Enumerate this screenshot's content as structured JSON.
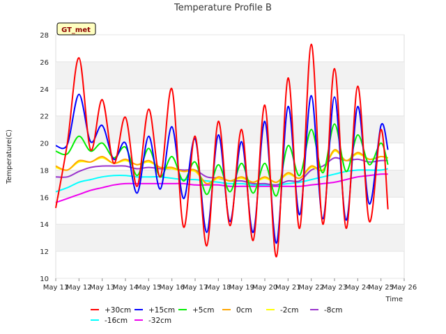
{
  "chart_data": {
    "type": "line",
    "title": "Temperature Profile B",
    "xlabel": "Time",
    "ylabel": "Temperature(C)",
    "badge": "GT_met",
    "x_ticks": [
      "May 11",
      "May 12",
      "May 13",
      "May 14",
      "May 15",
      "May 16",
      "May 17",
      "May 18",
      "May 19",
      "May 20",
      "May 21",
      "May 22",
      "May 23",
      "May 24",
      "May 25",
      "May 26"
    ],
    "y_ticks": [
      "10",
      "12",
      "14",
      "16",
      "18",
      "20",
      "22",
      "24",
      "26",
      "28"
    ],
    "xlim": [
      0,
      15
    ],
    "ylim": [
      10,
      28
    ],
    "bands": [
      [
        12,
        14
      ],
      [
        16,
        18
      ],
      [
        20,
        22
      ],
      [
        24,
        26
      ]
    ],
    "x": [
      0.0,
      0.5,
      1.0,
      1.5,
      2.0,
      2.5,
      3.0,
      3.5,
      4.0,
      4.5,
      5.0,
      5.5,
      6.0,
      6.5,
      7.0,
      7.5,
      8.0,
      8.5,
      9.0,
      9.5,
      10.0,
      10.5,
      11.0,
      11.5,
      12.0,
      12.5,
      13.0,
      13.5,
      14.0,
      14.3
    ],
    "series": [
      {
        "name": "+30cm",
        "color": "#ff0000",
        "values": [
          15.2,
          20.0,
          26.3,
          19.5,
          23.2,
          18.5,
          21.9,
          16.8,
          22.5,
          17.5,
          24.0,
          13.8,
          20.5,
          12.4,
          21.6,
          13.9,
          21.0,
          12.8,
          22.8,
          11.6,
          24.8,
          13.7,
          27.3,
          14.0,
          25.5,
          13.7,
          24.2,
          14.2,
          21.0,
          15.1
        ]
      },
      {
        "name": "+15cm",
        "color": "#0000ff",
        "values": [
          19.8,
          19.9,
          23.6,
          20.1,
          21.3,
          18.8,
          20.0,
          16.3,
          20.5,
          16.6,
          21.2,
          15.9,
          20.3,
          13.4,
          20.6,
          14.2,
          20.1,
          13.4,
          21.6,
          12.6,
          22.7,
          14.7,
          23.5,
          14.4,
          23.4,
          14.3,
          22.7,
          15.5,
          21.3,
          19.5
        ]
      },
      {
        "name": "+5cm",
        "color": "#00ee00",
        "values": [
          19.4,
          19.2,
          20.5,
          19.4,
          20.0,
          18.9,
          19.7,
          17.6,
          19.6,
          17.5,
          19.0,
          17.2,
          18.6,
          16.2,
          18.4,
          16.4,
          18.5,
          16.3,
          18.5,
          16.1,
          19.8,
          17.6,
          21.0,
          17.8,
          21.4,
          17.9,
          20.6,
          18.4,
          20.0,
          18.4
        ]
      },
      {
        "name": "0cm",
        "color": "#ffa500",
        "values": [
          18.3,
          18.0,
          18.7,
          18.6,
          19.0,
          18.5,
          18.8,
          18.4,
          18.7,
          18.2,
          18.2,
          17.9,
          18.0,
          17.0,
          17.5,
          17.2,
          17.5,
          17.1,
          17.5,
          17.1,
          17.8,
          17.4,
          18.3,
          18.0,
          19.5,
          18.7,
          19.3,
          18.8,
          19.0,
          18.9
        ]
      },
      {
        "name": "-2cm",
        "color": "#ffff00",
        "values": [
          18.2,
          18.0,
          18.6,
          18.6,
          18.9,
          18.5,
          18.7,
          18.4,
          18.6,
          18.2,
          18.1,
          17.9,
          17.9,
          17.0,
          17.4,
          17.2,
          17.4,
          17.1,
          17.4,
          17.1,
          17.7,
          17.4,
          18.2,
          18.0,
          19.4,
          18.7,
          19.2,
          18.8,
          19.0,
          18.9
        ]
      },
      {
        "name": "-8cm",
        "color": "#9932cc",
        "values": [
          17.5,
          17.5,
          17.9,
          18.2,
          18.3,
          18.3,
          18.3,
          18.1,
          18.2,
          18.1,
          18.1,
          18.0,
          18.0,
          17.5,
          17.4,
          17.2,
          17.2,
          17.0,
          17.0,
          16.9,
          17.2,
          17.2,
          18.0,
          18.3,
          18.9,
          18.7,
          18.8,
          18.6,
          18.7,
          18.7
        ]
      },
      {
        "name": "-16cm",
        "color": "#00ffff",
        "values": [
          16.4,
          16.7,
          17.1,
          17.3,
          17.5,
          17.6,
          17.6,
          17.5,
          17.5,
          17.5,
          17.4,
          17.3,
          17.3,
          17.2,
          17.1,
          17.0,
          17.0,
          16.9,
          16.9,
          16.9,
          17.0,
          17.1,
          17.3,
          17.5,
          17.7,
          17.9,
          18.0,
          18.0,
          18.0,
          18.1
        ]
      },
      {
        "name": "-32cm",
        "color": "#ee00ee",
        "values": [
          15.6,
          15.9,
          16.2,
          16.5,
          16.7,
          16.9,
          17.0,
          17.0,
          17.0,
          17.0,
          17.0,
          17.0,
          16.9,
          16.9,
          16.9,
          16.8,
          16.8,
          16.8,
          16.8,
          16.8,
          16.8,
          16.8,
          16.9,
          17.0,
          17.1,
          17.3,
          17.5,
          17.6,
          17.7,
          17.7
        ]
      }
    ]
  }
}
